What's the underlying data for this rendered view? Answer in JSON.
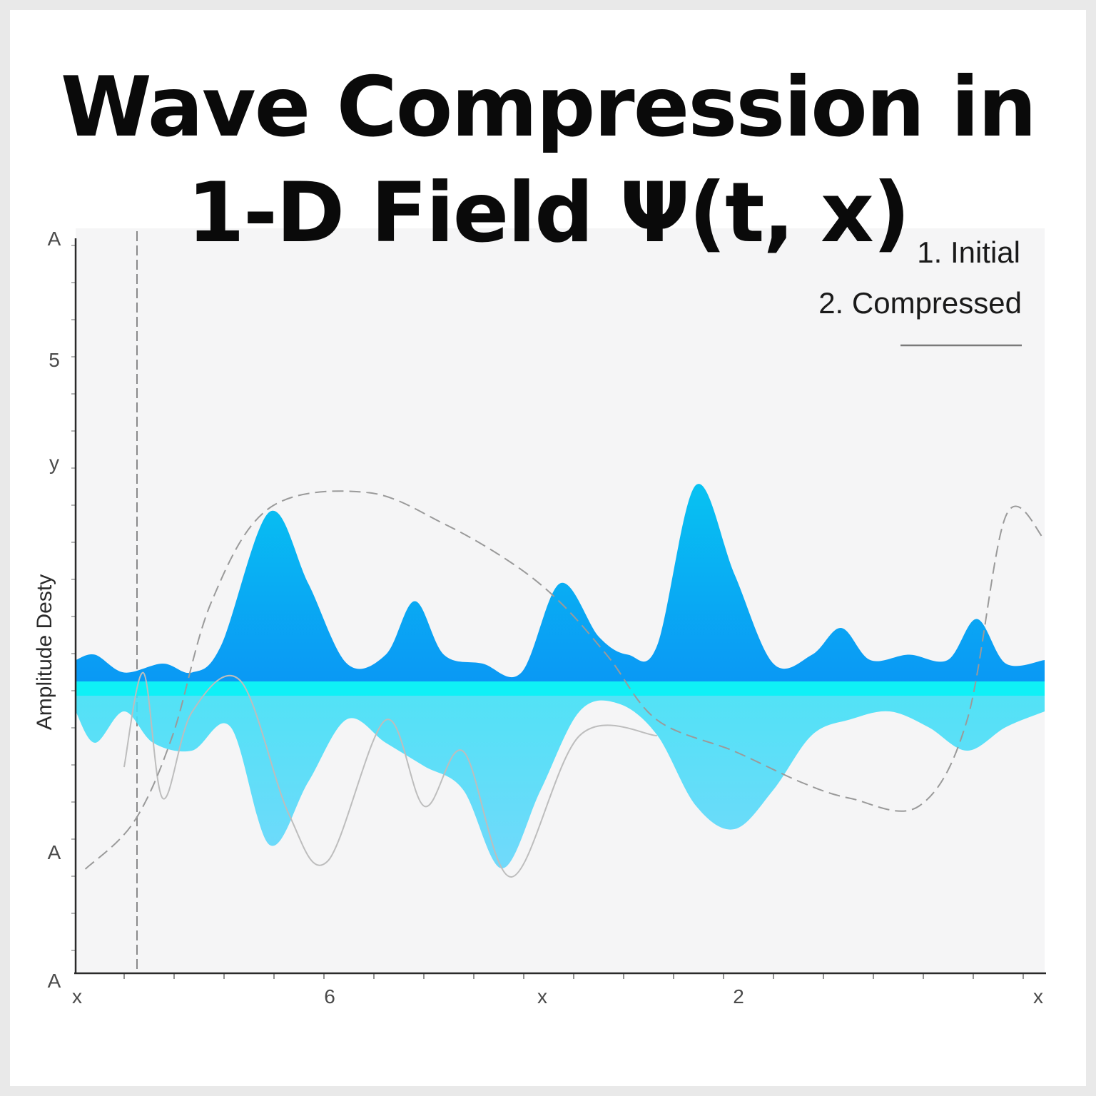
{
  "chart_data": {
    "type": "area",
    "title_lines": [
      "Wave Compression in",
      "1-D Field Ψ(t, x)"
    ],
    "ylabel": "Amplitude Desty",
    "legend": [
      "1. Initial",
      "2. Compressed"
    ],
    "y_tick_labels": [
      "A",
      "5",
      "y",
      "A",
      "A"
    ],
    "x_tick_labels": [
      "x",
      "6",
      "x",
      "2",
      "x"
    ],
    "colors": {
      "upper_top": "#08c2f2",
      "upper_bottom": "#0a97f4",
      "baseline_band": "#0ff0f6",
      "lower_top": "#3fe0f6",
      "lower_bottom": "#62d6fb",
      "dashed": "#9a9a9a",
      "thin": "#bdbdbd",
      "axis": "#2a2a2a",
      "plot_bg": "#f5f5f6"
    },
    "series": [
      {
        "role": "upper-filled",
        "x": [
          0,
          0.02,
          0.05,
          0.09,
          0.12,
          0.15,
          0.2,
          0.24,
          0.28,
          0.32,
          0.35,
          0.38,
          0.42,
          0.46,
          0.5,
          0.54,
          0.57,
          0.6,
          0.64,
          0.68,
          0.72,
          0.76,
          0.79,
          0.82,
          0.86,
          0.9,
          0.93,
          0.96,
          1.0
        ],
        "y": [
          0.12,
          0.15,
          0.05,
          0.1,
          0.05,
          0.2,
          0.95,
          0.55,
          0.1,
          0.15,
          0.45,
          0.15,
          0.1,
          0.05,
          0.55,
          0.25,
          0.15,
          0.2,
          1.1,
          0.6,
          0.1,
          0.15,
          0.3,
          0.12,
          0.15,
          0.12,
          0.35,
          0.1,
          0.12
        ]
      },
      {
        "role": "lower-filled",
        "x": [
          0,
          0.02,
          0.05,
          0.08,
          0.12,
          0.16,
          0.2,
          0.24,
          0.28,
          0.32,
          0.36,
          0.4,
          0.44,
          0.48,
          0.52,
          0.56,
          0.6,
          0.64,
          0.68,
          0.72,
          0.76,
          0.8,
          0.84,
          0.88,
          0.92,
          0.96,
          1.0
        ],
        "y": [
          -0.1,
          -0.3,
          -0.1,
          -0.3,
          -0.35,
          -0.2,
          -0.95,
          -0.55,
          -0.15,
          -0.3,
          -0.45,
          -0.6,
          -1.1,
          -0.6,
          -0.1,
          -0.05,
          -0.25,
          -0.7,
          -0.85,
          -0.6,
          -0.25,
          -0.15,
          -0.1,
          -0.2,
          -0.35,
          -0.2,
          -0.1
        ]
      },
      {
        "role": "dashed-overlay",
        "x": [
          0.01,
          0.06,
          0.1,
          0.14,
          0.2,
          0.3,
          0.38,
          0.45,
          0.5,
          0.55,
          0.6,
          0.68,
          0.75,
          0.8,
          0.87,
          0.92,
          0.96,
          1.0
        ],
        "y": [
          -1.15,
          -0.85,
          -0.3,
          0.55,
          1.15,
          1.25,
          1.05,
          0.8,
          0.55,
          0.2,
          -0.2,
          -0.4,
          -0.6,
          -0.7,
          -0.75,
          -0.2,
          1.1,
          0.95
        ]
      },
      {
        "role": "thin-overlay",
        "x": [
          0.05,
          0.07,
          0.09,
          0.12,
          0.17,
          0.22,
          0.26,
          0.32,
          0.36,
          0.4,
          0.45,
          0.52,
          0.6
        ],
        "y": [
          -0.5,
          0.1,
          -0.7,
          -0.15,
          0.05,
          -0.8,
          -1.1,
          -0.2,
          -0.75,
          -0.4,
          -1.2,
          -0.3,
          -0.3
        ]
      }
    ]
  }
}
